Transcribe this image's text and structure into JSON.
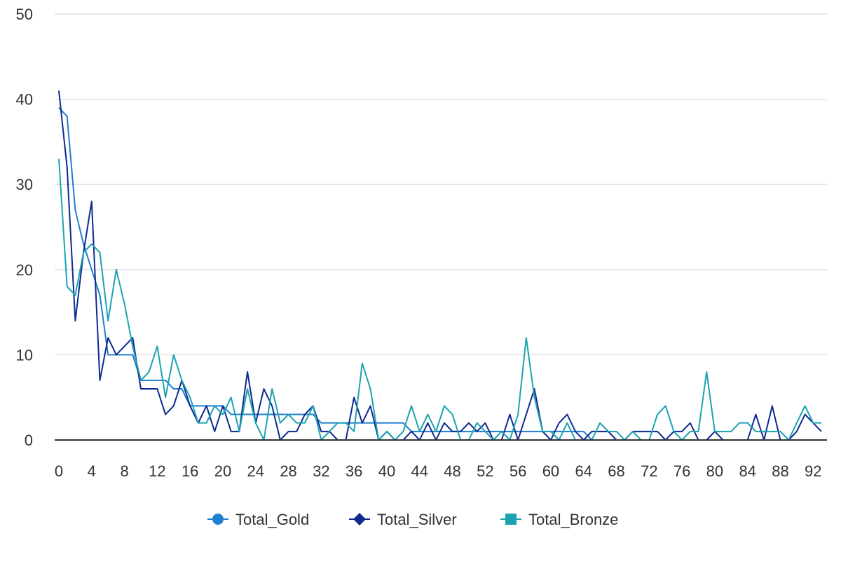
{
  "chart_data": {
    "type": "line",
    "title": "",
    "xlabel": "",
    "ylabel": "",
    "xlim": [
      0,
      93
    ],
    "ylim": [
      0,
      50
    ],
    "x_ticks": [
      0,
      4,
      8,
      12,
      16,
      20,
      24,
      28,
      32,
      36,
      40,
      44,
      48,
      52,
      56,
      60,
      64,
      68,
      72,
      76,
      80,
      84,
      88,
      92
    ],
    "y_ticks": [
      0,
      10,
      20,
      30,
      40,
      50
    ],
    "grid": "horizontal",
    "legend_position": "bottom",
    "series": [
      {
        "name": "Total_Gold",
        "color": "#1f7fd1",
        "marker": "circle",
        "values": [
          39,
          38,
          27,
          23,
          20,
          17,
          10,
          10,
          10,
          10,
          7,
          7,
          7,
          7,
          6,
          6,
          4,
          4,
          4,
          4,
          4,
          3,
          3,
          3,
          3,
          3,
          3,
          3,
          3,
          3,
          3,
          3,
          2,
          2,
          2,
          2,
          2,
          2,
          2,
          2,
          2,
          2,
          2,
          1,
          1,
          1,
          1,
          1,
          1,
          1,
          1,
          1,
          1,
          1,
          1,
          1,
          1,
          1,
          1,
          1,
          1,
          1,
          1,
          1,
          1,
          0,
          0,
          0,
          0,
          0,
          0,
          0,
          0,
          0,
          0,
          0,
          0,
          0,
          0,
          0,
          0,
          0,
          0,
          0,
          0,
          0,
          0,
          0,
          0,
          0,
          0,
          0,
          0,
          0
        ]
      },
      {
        "name": "Total_Silver",
        "color": "#0d2a8f",
        "marker": "diamond",
        "values": [
          41,
          32,
          14,
          22,
          28,
          7,
          12,
          10,
          11,
          12,
          6,
          6,
          6,
          3,
          4,
          7,
          4,
          2,
          4,
          1,
          4,
          1,
          1,
          8,
          2,
          6,
          4,
          0,
          1,
          1,
          3,
          4,
          1,
          1,
          0,
          0,
          5,
          2,
          4,
          0,
          1,
          0,
          0,
          1,
          0,
          2,
          0,
          2,
          1,
          1,
          2,
          1,
          2,
          0,
          0,
          3,
          0,
          3,
          6,
          1,
          0,
          2,
          3,
          1,
          0,
          1,
          1,
          1,
          0,
          0,
          1,
          1,
          1,
          1,
          0,
          1,
          1,
          2,
          0,
          0,
          1,
          0,
          0,
          0,
          0,
          3,
          0,
          4,
          0,
          0,
          1,
          3,
          2,
          1
        ]
      },
      {
        "name": "Total_Bronze",
        "color": "#1ba3b2",
        "marker": "square",
        "values": [
          33,
          18,
          17,
          22,
          23,
          22,
          14,
          20,
          16,
          11,
          7,
          8,
          11,
          5,
          10,
          7,
          5,
          2,
          2,
          4,
          3,
          5,
          1,
          6,
          2,
          0,
          6,
          2,
          3,
          2,
          2,
          4,
          0,
          1,
          2,
          2,
          1,
          9,
          6,
          0,
          1,
          0,
          1,
          4,
          1,
          3,
          1,
          4,
          3,
          0,
          0,
          2,
          1,
          0,
          1,
          0,
          3,
          12,
          5,
          1,
          1,
          0,
          2,
          0,
          0,
          0,
          2,
          1,
          1,
          0,
          1,
          0,
          0,
          3,
          4,
          1,
          0,
          1,
          1,
          8,
          1,
          1,
          1,
          2,
          2,
          1,
          1,
          1,
          1,
          0,
          2,
          4,
          2,
          2
        ]
      }
    ]
  }
}
